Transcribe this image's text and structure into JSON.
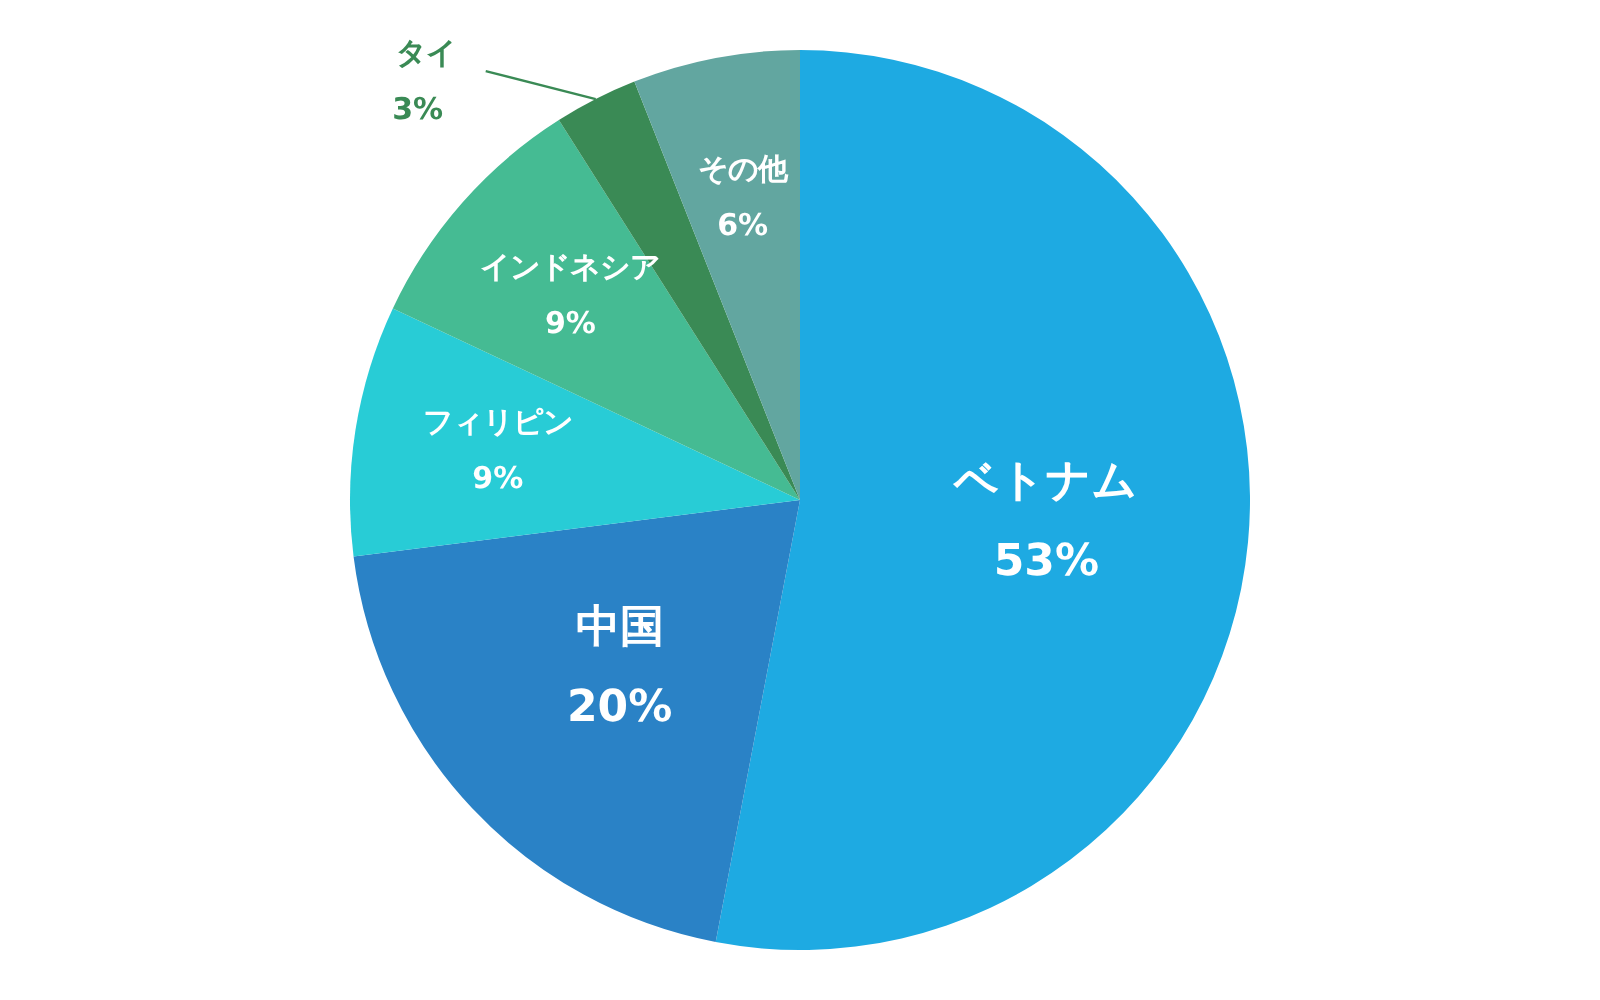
{
  "chart_data": {
    "type": "pie",
    "categories": [
      "ベトナム",
      "中国",
      "フィリピン",
      "インドネシア",
      "タイ",
      "その他"
    ],
    "values": [
      53,
      20,
      9,
      9,
      3,
      6
    ],
    "value_labels": [
      "53%",
      "20%",
      "9%",
      "9%",
      "3%",
      "6%"
    ],
    "colors": [
      "#1eaae2",
      "#2a82c6",
      "#28ccd6",
      "#45bb93",
      "#3a8a55",
      "#62a6a0"
    ],
    "legend": false
  }
}
